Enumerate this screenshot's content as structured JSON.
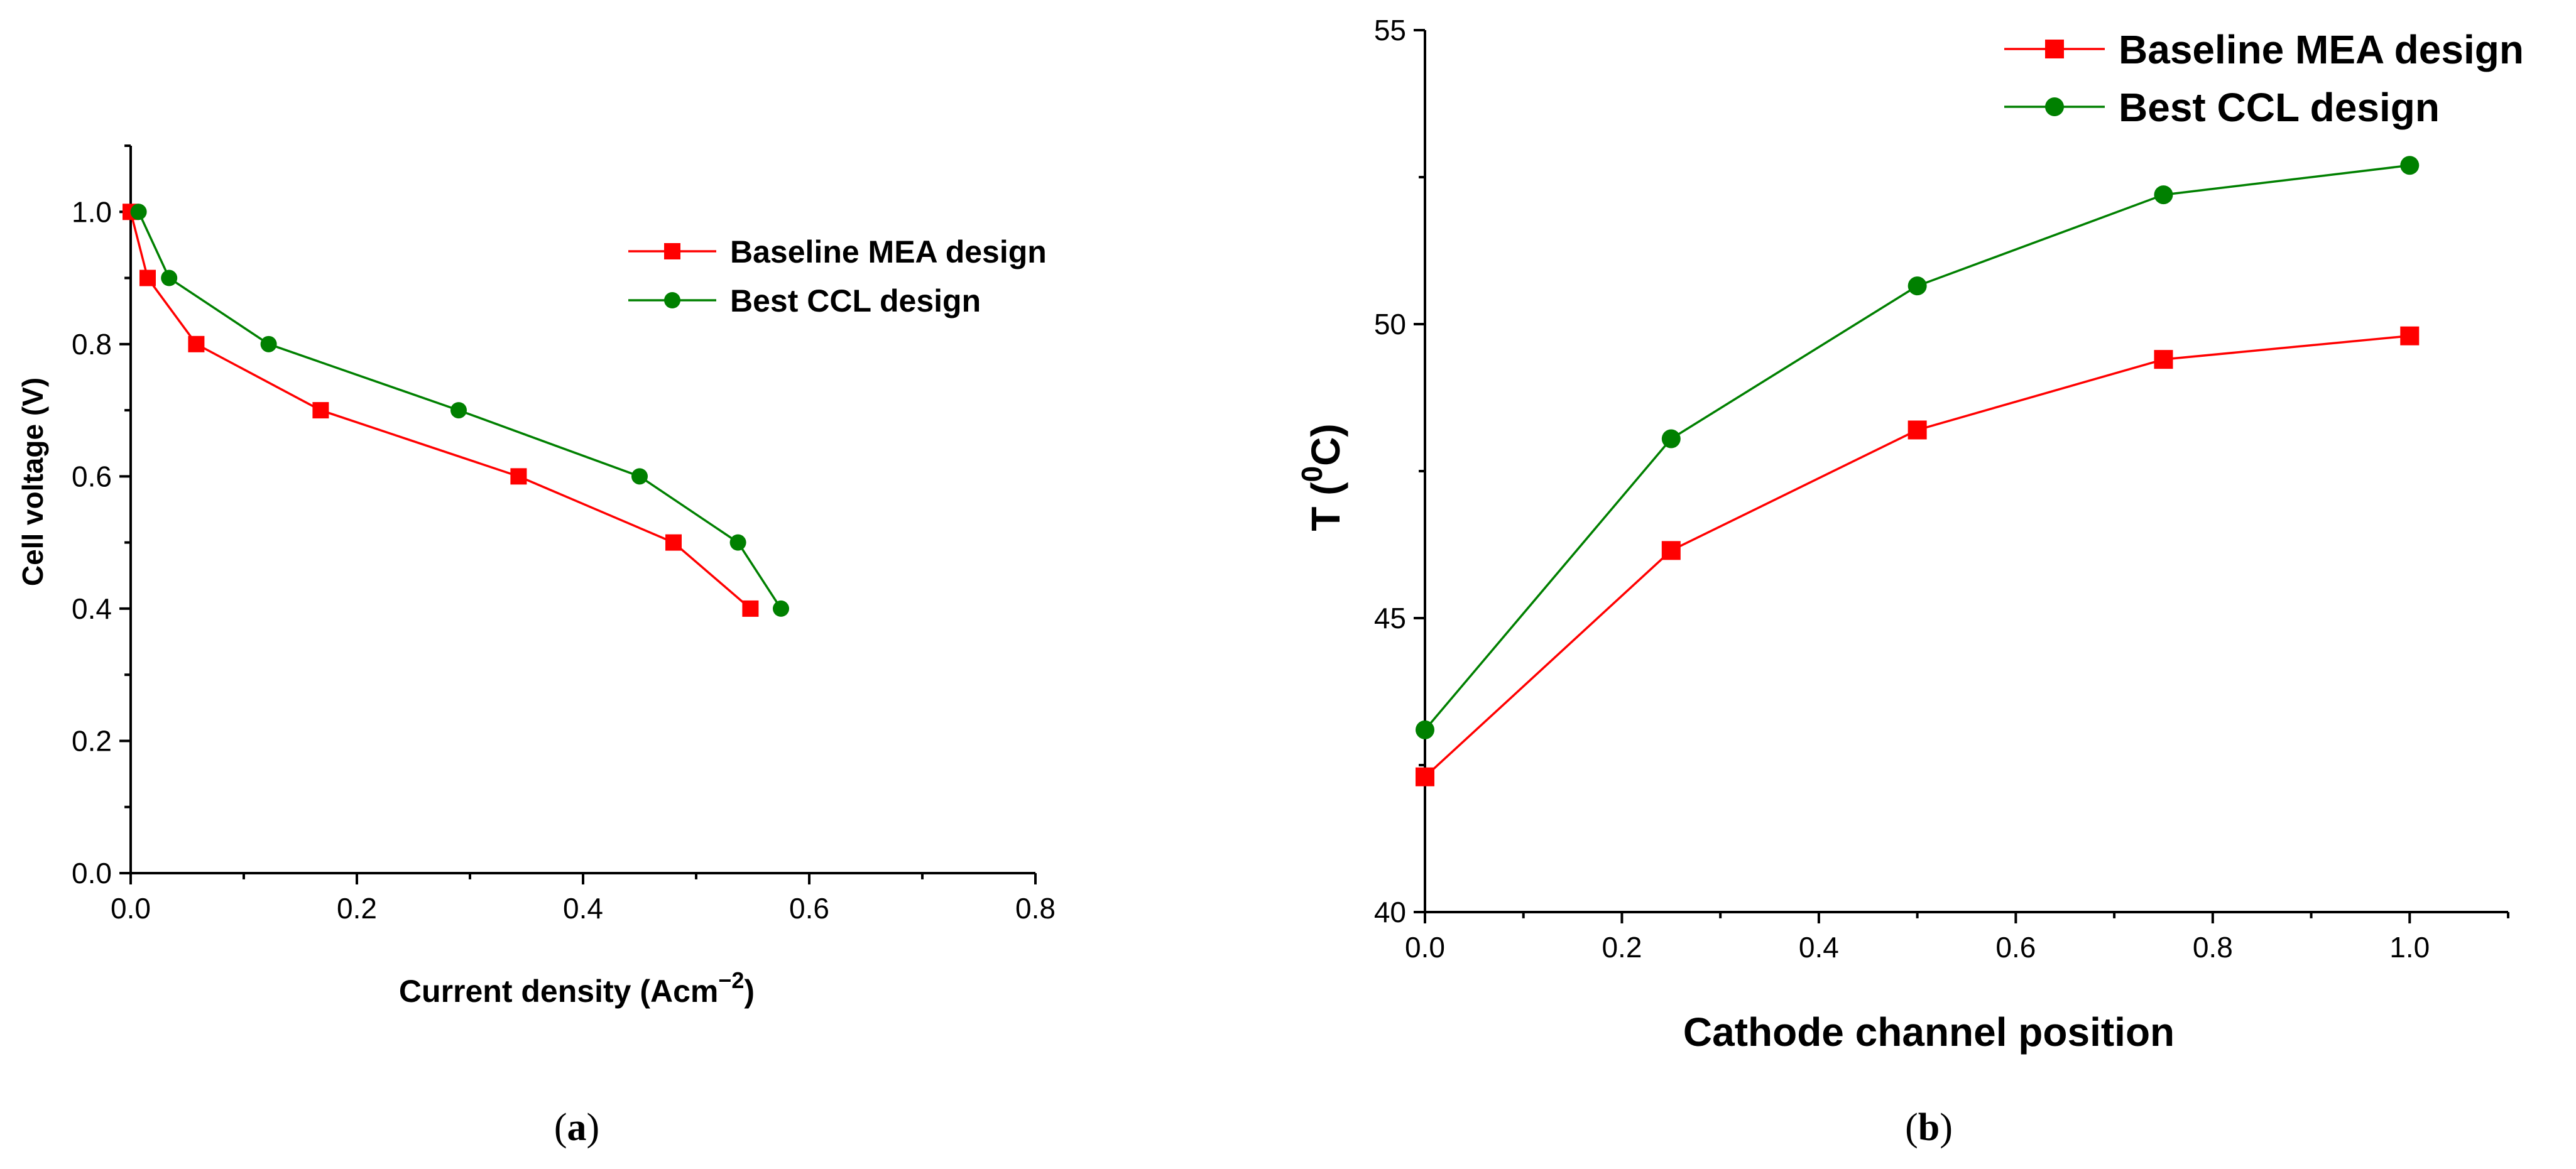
{
  "chart_data": [
    {
      "type": "line",
      "panel_label": "a",
      "xlabel": "Current density (Acm",
      "xlabel_sup": "−2",
      "xlabel_close": ")",
      "ylabel": "Cell voltage (V)",
      "xlim": [
        0,
        0.8
      ],
      "ylim": [
        0,
        1.1
      ],
      "xticks": [
        0.0,
        0.2,
        0.4,
        0.6,
        0.8
      ],
      "xtick_labels": [
        "0.0",
        "0.2",
        "0.4",
        "0.6",
        "0.8"
      ],
      "yticks": [
        0.0,
        0.2,
        0.4,
        0.6,
        0.8,
        1.0
      ],
      "ytick_labels": [
        "0.0",
        "0.2",
        "0.4",
        "0.6",
        "0.8",
        "1.0"
      ],
      "legend_position": "top-right",
      "series": [
        {
          "name": "Baseline MEA design",
          "color": "#ff0000",
          "marker": "square",
          "points": [
            [
              0.0,
              1.0
            ],
            [
              0.015,
              0.9
            ],
            [
              0.058,
              0.8
            ],
            [
              0.168,
              0.7
            ],
            [
              0.343,
              0.6
            ],
            [
              0.48,
              0.5
            ],
            [
              0.548,
              0.4
            ]
          ]
        },
        {
          "name": "Best CCL design",
          "color": "#008000",
          "marker": "circle",
          "points": [
            [
              0.007,
              1.0
            ],
            [
              0.034,
              0.9
            ],
            [
              0.122,
              0.8
            ],
            [
              0.29,
              0.7
            ],
            [
              0.45,
              0.6
            ],
            [
              0.537,
              0.5
            ],
            [
              0.575,
              0.4
            ]
          ]
        }
      ]
    },
    {
      "type": "line",
      "panel_label": "b",
      "xlabel": "Cathode channel position",
      "ylabel": "T (",
      "ylabel_sup": "0",
      "ylabel_close": "C)",
      "xlim": [
        0,
        1.1
      ],
      "ylim": [
        40,
        55
      ],
      "xticks": [
        0.0,
        0.2,
        0.4,
        0.6,
        0.8,
        1.0
      ],
      "xtick_labels": [
        "0.0",
        "0.2",
        "0.4",
        "0.6",
        "0.8",
        "1.0"
      ],
      "yticks": [
        40,
        45,
        50,
        55
      ],
      "ytick_labels": [
        "40",
        "45",
        "50",
        "55"
      ],
      "legend_position": "top-right",
      "series": [
        {
          "name": "Baseline MEA design",
          "color": "#ff0000",
          "marker": "square",
          "points": [
            [
              0.0,
              42.3
            ],
            [
              0.25,
              46.15
            ],
            [
              0.5,
              48.2
            ],
            [
              0.75,
              49.4
            ],
            [
              1.0,
              49.8
            ]
          ]
        },
        {
          "name": "Best CCL design",
          "color": "#008000",
          "marker": "circle",
          "points": [
            [
              0.0,
              43.1
            ],
            [
              0.25,
              48.05
            ],
            [
              0.5,
              50.65
            ],
            [
              0.75,
              52.2
            ],
            [
              1.0,
              52.7
            ]
          ]
        }
      ]
    }
  ]
}
